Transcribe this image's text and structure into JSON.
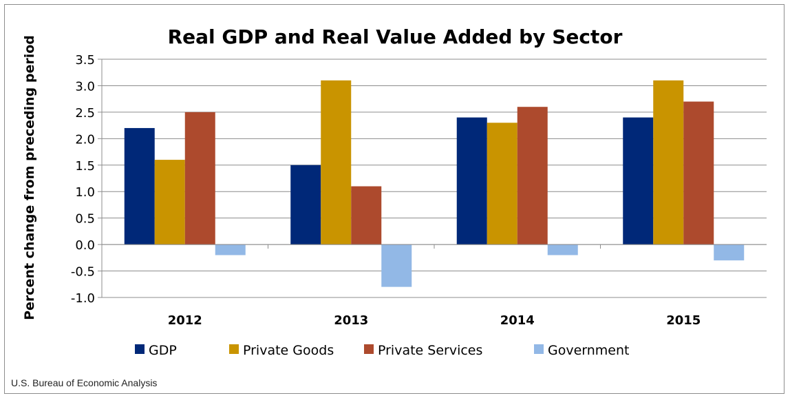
{
  "chart_data": {
    "type": "bar",
    "title": "Real GDP and Real Value Added by Sector",
    "xlabel": "",
    "ylabel": "Percent change from preceding period",
    "categories": [
      "2012",
      "2013",
      "2014",
      "2015"
    ],
    "series": [
      {
        "name": "GDP",
        "color": "#002878",
        "values": [
          2.2,
          1.5,
          2.4,
          2.4
        ]
      },
      {
        "name": "Private Goods",
        "color": "#c99400",
        "values": [
          1.6,
          3.1,
          2.3,
          3.1
        ]
      },
      {
        "name": "Private Services",
        "color": "#ad4a2d",
        "values": [
          2.5,
          1.1,
          2.6,
          2.7
        ]
      },
      {
        "name": "Government",
        "color": "#92b8e6",
        "values": [
          -0.2,
          -0.8,
          -0.2,
          -0.3
        ]
      }
    ],
    "ylim": [
      -1.0,
      3.5
    ],
    "yticks": [
      "3.5",
      "3.0",
      "2.5",
      "2.0",
      "1.5",
      "1.0",
      "0.5",
      "0.0",
      "-0.5",
      "-1.0"
    ],
    "grid": true,
    "legend_position": "bottom"
  },
  "source_note": "U.S. Bureau of Economic Analysis"
}
